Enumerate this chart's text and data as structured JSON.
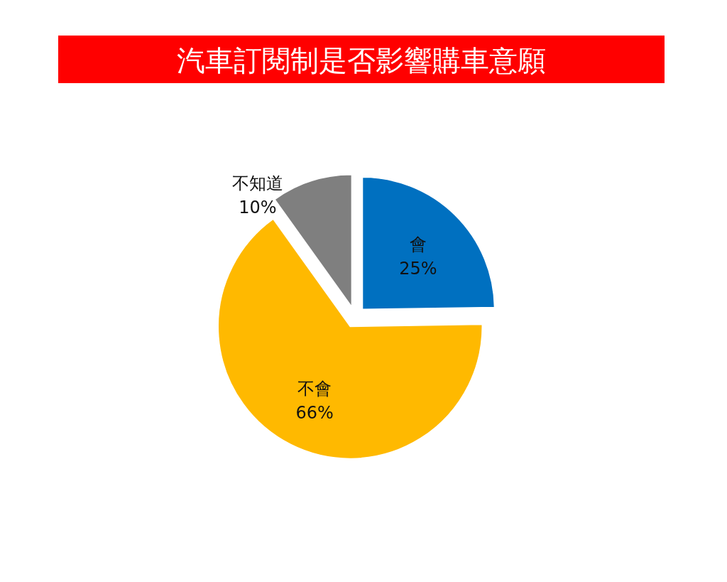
{
  "chart_data": {
    "type": "pie",
    "title": "汽車訂閱制是否影響購車意願",
    "categories": [
      "會",
      "不會",
      "不知道"
    ],
    "values": [
      25,
      66,
      10
    ],
    "colors": [
      "#0070c0",
      "#ffb900",
      "#7f7f7f"
    ],
    "value_labels": [
      "25%",
      "66%",
      "10%"
    ]
  }
}
